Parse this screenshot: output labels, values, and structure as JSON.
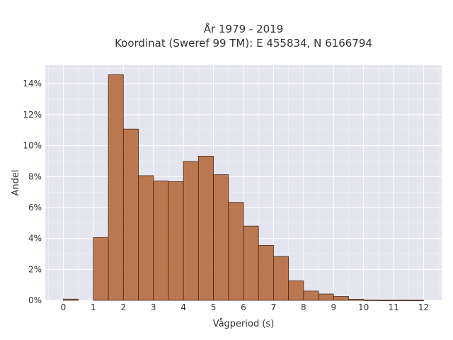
{
  "chart_data": {
    "type": "bar",
    "title_lines": [
      "År 1979 - 2019",
      "Koordinat (Sweref 99 TM): E 455834, N 6166794"
    ],
    "xlabel": "Vågperiod (s)",
    "ylabel": "Andel",
    "xlim": [
      -0.6,
      12.6
    ],
    "ylim": [
      0,
      0.152
    ],
    "x_ticks": [
      0,
      1,
      2,
      3,
      4,
      5,
      6,
      7,
      8,
      9,
      10,
      11,
      12
    ],
    "y_ticks": [
      0,
      0.02,
      0.04,
      0.06,
      0.08,
      0.1,
      0.12,
      0.14
    ],
    "y_tick_labels": [
      "0%",
      "2%",
      "4%",
      "6%",
      "8%",
      "10%",
      "12%",
      "14%"
    ],
    "grid": true,
    "bin_edges": [
      0,
      0.5,
      1,
      1.5,
      2,
      2.5,
      3,
      3.5,
      4,
      4.5,
      5,
      5.5,
      6,
      6.5,
      7,
      7.5,
      8,
      8.5,
      9,
      9.5,
      10,
      10.5,
      11,
      11.5,
      12
    ],
    "values": [
      0.0008,
      0.0,
      0.0406,
      0.1458,
      0.1107,
      0.0806,
      0.0772,
      0.0767,
      0.0898,
      0.0932,
      0.0812,
      0.0633,
      0.048,
      0.0355,
      0.0283,
      0.0126,
      0.006,
      0.0041,
      0.0025,
      0.0007,
      0.0002,
      0.0001,
      0.0001,
      0.0001
    ],
    "colors": {
      "bar": "#b5693a",
      "edge": "#4a2a1a",
      "plot_bg": "#e5e5ef"
    }
  }
}
